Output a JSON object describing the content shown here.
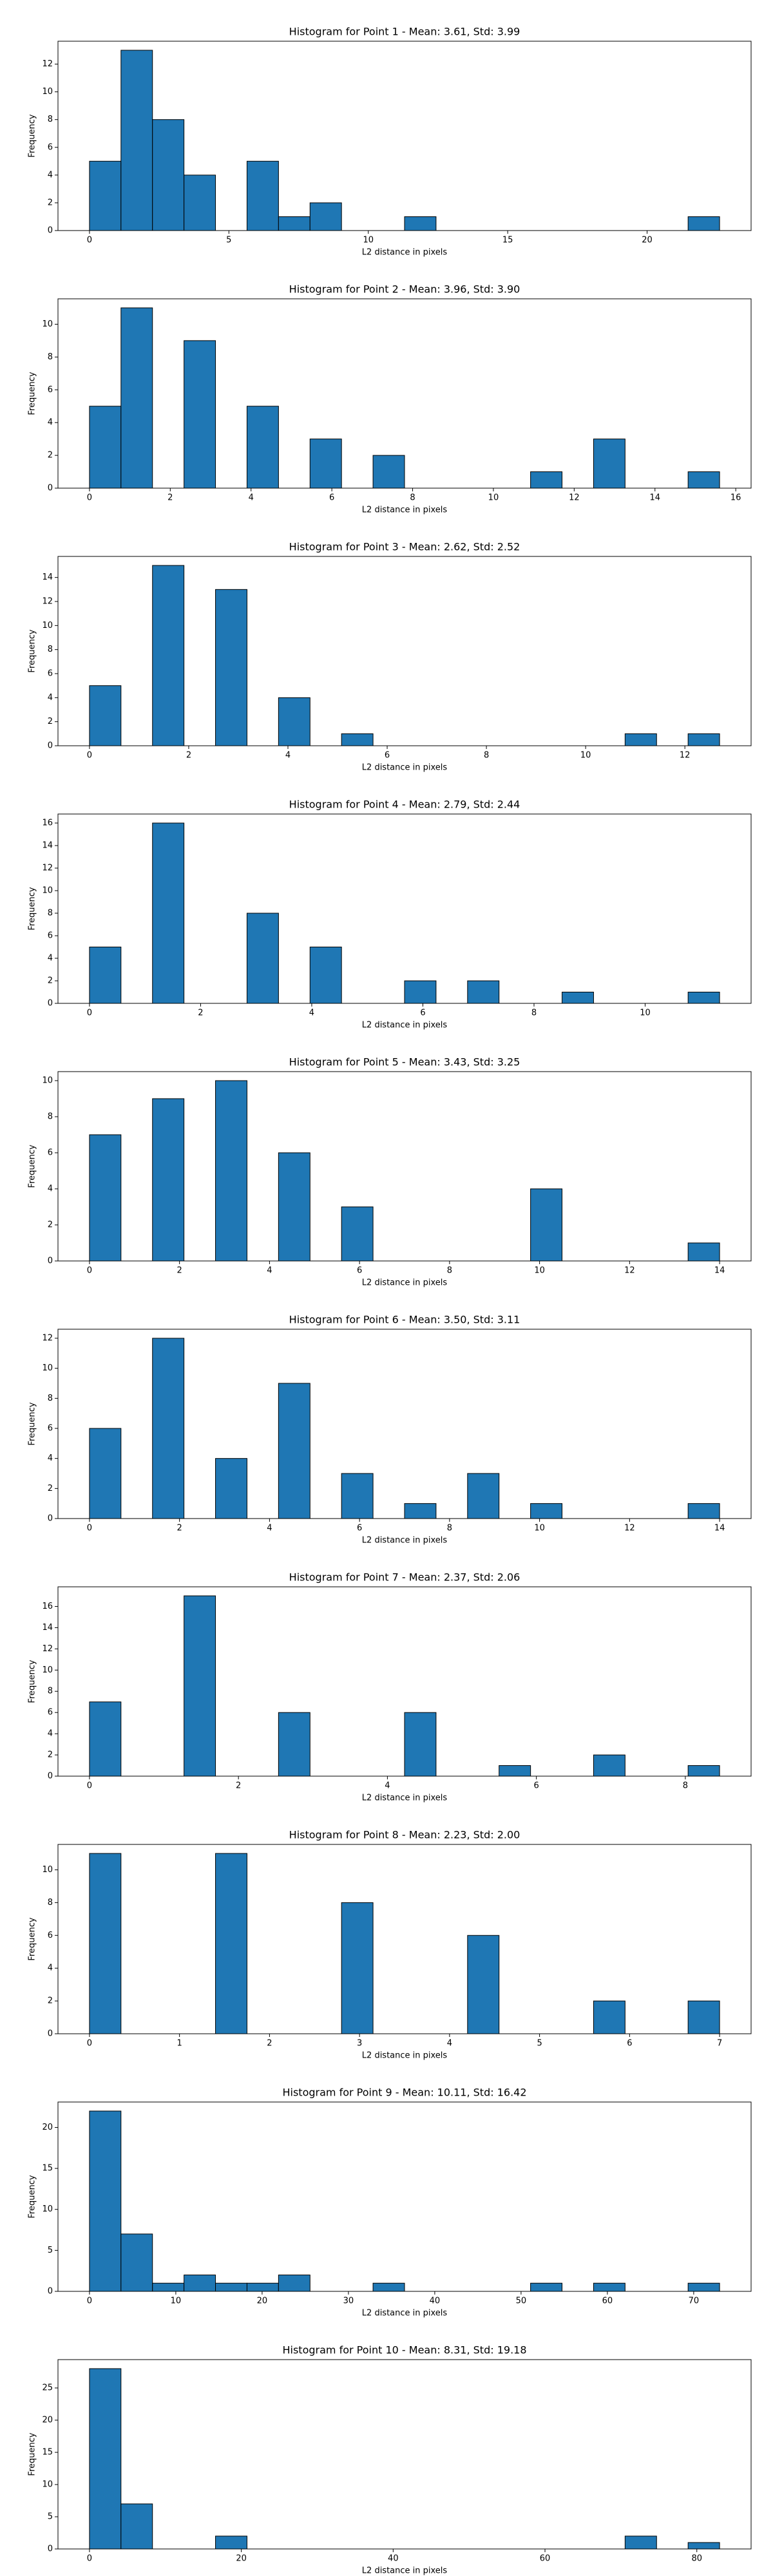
{
  "chart_data": [
    {
      "type": "histogram",
      "title": "Histogram for Point 1 - Mean: 3.61, Std: 3.99",
      "xlabel": "L2 distance in pixels",
      "ylabel": "Frequency",
      "color": "#1f77b4",
      "bins": [
        0,
        1.13,
        2.26,
        3.39,
        4.52,
        5.65,
        6.78,
        7.91,
        9.04,
        10.17,
        11.3,
        12.43,
        13.56,
        14.69,
        15.82,
        16.95,
        18.08,
        19.21,
        20.34,
        21.47,
        22.6
      ],
      "values": [
        5,
        13,
        8,
        4,
        0,
        5,
        1,
        2,
        0,
        0,
        1,
        0,
        0,
        0,
        0,
        0,
        0,
        0,
        0,
        1
      ],
      "xlim": [
        -1.13,
        23.73
      ],
      "xticks": [
        0,
        5,
        10,
        15,
        20
      ],
      "ylim": [
        0,
        13.65
      ],
      "yticks": [
        0,
        2,
        4,
        6,
        8,
        10,
        12
      ]
    },
    {
      "type": "histogram",
      "title": "Histogram for Point 2 - Mean: 3.96, Std: 3.90",
      "xlabel": "L2 distance in pixels",
      "ylabel": "Frequency",
      "color": "#1f77b4",
      "bins": [
        0,
        0.78,
        1.56,
        2.34,
        3.12,
        3.9,
        4.68,
        5.46,
        6.24,
        7.02,
        7.8,
        8.58,
        9.36,
        10.14,
        10.92,
        11.7,
        12.48,
        13.26,
        14.04,
        14.82,
        15.6
      ],
      "values": [
        5,
        11,
        0,
        9,
        0,
        5,
        0,
        3,
        0,
        2,
        0,
        0,
        0,
        0,
        1,
        0,
        3,
        0,
        0,
        1
      ],
      "xlim": [
        -0.78,
        16.38
      ],
      "xticks": [
        0,
        2,
        4,
        6,
        8,
        10,
        12,
        14,
        16
      ],
      "ylim": [
        0,
        11.55
      ],
      "yticks": [
        0,
        2,
        4,
        6,
        8,
        10
      ]
    },
    {
      "type": "histogram",
      "title": "Histogram for Point 3 - Mean: 2.62, Std: 2.52",
      "xlabel": "L2 distance in pixels",
      "ylabel": "Frequency",
      "color": "#1f77b4",
      "bins": [
        0,
        0.635,
        1.27,
        1.905,
        2.54,
        3.175,
        3.81,
        4.445,
        5.08,
        5.715,
        6.35,
        6.985,
        7.62,
        8.255,
        8.89,
        9.525,
        10.16,
        10.795,
        11.43,
        12.065,
        12.7
      ],
      "values": [
        5,
        0,
        15,
        0,
        13,
        0,
        4,
        0,
        1,
        0,
        0,
        0,
        0,
        0,
        0,
        0,
        0,
        1,
        0,
        1
      ],
      "xlim": [
        -0.635,
        13.335
      ],
      "xticks": [
        0,
        2,
        4,
        6,
        8,
        10,
        12
      ],
      "ylim": [
        0,
        15.75
      ],
      "yticks": [
        0,
        2,
        4,
        6,
        8,
        10,
        12,
        14
      ]
    },
    {
      "type": "histogram",
      "title": "Histogram for Point 4 - Mean: 2.79, Std: 2.44",
      "xlabel": "L2 distance in pixels",
      "ylabel": "Frequency",
      "color": "#1f77b4",
      "bins": [
        0,
        0.567,
        1.134,
        1.701,
        2.268,
        2.835,
        3.402,
        3.969,
        4.536,
        5.103,
        5.67,
        6.237,
        6.804,
        7.371,
        7.938,
        8.505,
        9.072,
        9.639,
        10.206,
        10.773,
        11.34
      ],
      "values": [
        5,
        0,
        16,
        0,
        0,
        8,
        0,
        5,
        0,
        0,
        2,
        0,
        2,
        0,
        0,
        1,
        0,
        0,
        0,
        1
      ],
      "xlim": [
        -0.567,
        11.907
      ],
      "xticks": [
        0,
        2,
        4,
        6,
        8,
        10
      ],
      "ylim": [
        0,
        16.8
      ],
      "yticks": [
        0,
        2,
        4,
        6,
        8,
        10,
        12,
        14,
        16
      ]
    },
    {
      "type": "histogram",
      "title": "Histogram for Point 5 - Mean: 3.43, Std: 3.25",
      "xlabel": "L2 distance in pixels",
      "ylabel": "Frequency",
      "color": "#1f77b4",
      "bins": [
        0,
        0.7,
        1.4,
        2.1,
        2.8,
        3.5,
        4.2,
        4.9,
        5.6,
        6.3,
        7,
        7.7,
        8.4,
        9.1,
        9.8,
        10.5,
        11.2,
        11.9,
        12.6,
        13.3,
        14
      ],
      "values": [
        7,
        0,
        9,
        0,
        10,
        0,
        6,
        0,
        3,
        0,
        0,
        0,
        0,
        0,
        4,
        0,
        0,
        0,
        0,
        1
      ],
      "xlim": [
        -0.7,
        14.7
      ],
      "xticks": [
        0,
        2,
        4,
        6,
        8,
        10,
        12,
        14
      ],
      "ylim": [
        0,
        10.5
      ],
      "yticks": [
        0,
        2,
        4,
        6,
        8,
        10
      ]
    },
    {
      "type": "histogram",
      "title": "Histogram for Point 6 - Mean: 3.50, Std: 3.11",
      "xlabel": "L2 distance in pixels",
      "ylabel": "Frequency",
      "color": "#1f77b4",
      "bins": [
        0,
        0.7,
        1.4,
        2.1,
        2.8,
        3.5,
        4.2,
        4.9,
        5.6,
        6.3,
        7,
        7.7,
        8.4,
        9.1,
        9.8,
        10.5,
        11.2,
        11.9,
        12.6,
        13.3,
        14
      ],
      "values": [
        6,
        0,
        12,
        0,
        4,
        0,
        9,
        0,
        3,
        0,
        1,
        0,
        3,
        0,
        1,
        0,
        0,
        0,
        0,
        1
      ],
      "xlim": [
        -0.7,
        14.7
      ],
      "xticks": [
        0,
        2,
        4,
        6,
        8,
        10,
        12,
        14
      ],
      "ylim": [
        0,
        12.6
      ],
      "yticks": [
        0,
        2,
        4,
        6,
        8,
        10,
        12
      ]
    },
    {
      "type": "histogram",
      "title": "Histogram for Point 7 - Mean: 2.37, Std: 2.06",
      "xlabel": "L2 distance in pixels",
      "ylabel": "Frequency",
      "color": "#1f77b4",
      "bins": [
        0,
        0.423,
        0.846,
        1.269,
        1.692,
        2.115,
        2.538,
        2.961,
        3.384,
        3.807,
        4.23,
        4.653,
        5.076,
        5.499,
        5.922,
        6.345,
        6.768,
        7.191,
        7.614,
        8.037,
        8.46
      ],
      "values": [
        7,
        0,
        0,
        17,
        0,
        0,
        6,
        0,
        0,
        0,
        6,
        0,
        0,
        1,
        0,
        0,
        2,
        0,
        0,
        1
      ],
      "xlim": [
        -0.423,
        8.883
      ],
      "xticks": [
        0,
        2,
        4,
        6,
        8
      ],
      "ylim": [
        0,
        17.85
      ],
      "yticks": [
        0,
        2,
        4,
        6,
        8,
        10,
        12,
        14,
        16
      ]
    },
    {
      "type": "histogram",
      "title": "Histogram for Point 8 - Mean: 2.23, Std: 2.00",
      "xlabel": "L2 distance in pixels",
      "ylabel": "Frequency",
      "color": "#1f77b4",
      "bins": [
        0,
        0.35,
        0.7,
        1.05,
        1.4,
        1.75,
        2.1,
        2.45,
        2.8,
        3.15,
        3.5,
        3.85,
        4.2,
        4.55,
        4.9,
        5.25,
        5.6,
        5.95,
        6.3,
        6.65,
        7
      ],
      "values": [
        11,
        0,
        0,
        0,
        11,
        0,
        0,
        0,
        8,
        0,
        0,
        0,
        6,
        0,
        0,
        0,
        2,
        0,
        0,
        2
      ],
      "xlim": [
        -0.35,
        7.35
      ],
      "xticks": [
        0,
        1,
        2,
        3,
        4,
        5,
        6,
        7
      ],
      "ylim": [
        0,
        11.55
      ],
      "yticks": [
        0,
        2,
        4,
        6,
        8,
        10
      ]
    },
    {
      "type": "histogram",
      "title": "Histogram for Point 9 - Mean: 10.11, Std: 16.42",
      "xlabel": "L2 distance in pixels",
      "ylabel": "Frequency",
      "color": "#1f77b4",
      "bins": [
        0,
        3.65,
        7.3,
        10.95,
        14.6,
        18.25,
        21.9,
        25.55,
        29.2,
        32.85,
        36.5,
        40.15,
        43.8,
        47.45,
        51.1,
        54.75,
        58.4,
        62.05,
        65.7,
        69.35,
        73
      ],
      "values": [
        22,
        7,
        1,
        2,
        1,
        1,
        2,
        0,
        0,
        1,
        0,
        0,
        0,
        0,
        1,
        0,
        1,
        0,
        0,
        1
      ],
      "xlim": [
        -3.65,
        76.65
      ],
      "xticks": [
        0,
        10,
        20,
        30,
        40,
        50,
        60,
        70
      ],
      "ylim": [
        0,
        23.1
      ],
      "yticks": [
        0,
        5,
        10,
        15,
        20
      ]
    },
    {
      "type": "histogram",
      "title": "Histogram for Point 10 - Mean: 8.31, Std: 19.18",
      "xlabel": "L2 distance in pixels",
      "ylabel": "Frequency",
      "color": "#1f77b4",
      "bins": [
        0,
        4.15,
        8.3,
        12.45,
        16.6,
        20.75,
        24.9,
        29.05,
        33.2,
        37.35,
        41.5,
        45.65,
        49.8,
        53.95,
        58.1,
        62.25,
        66.4,
        70.55,
        74.7,
        78.85,
        83
      ],
      "values": [
        28,
        7,
        0,
        0,
        2,
        0,
        0,
        0,
        0,
        0,
        0,
        0,
        0,
        0,
        0,
        0,
        0,
        2,
        0,
        1
      ],
      "xlim": [
        -4.15,
        87.15
      ],
      "xticks": [
        0,
        20,
        40,
        60,
        80
      ],
      "ylim": [
        0,
        29.4
      ],
      "yticks": [
        0,
        5,
        10,
        15,
        20,
        25
      ]
    }
  ]
}
